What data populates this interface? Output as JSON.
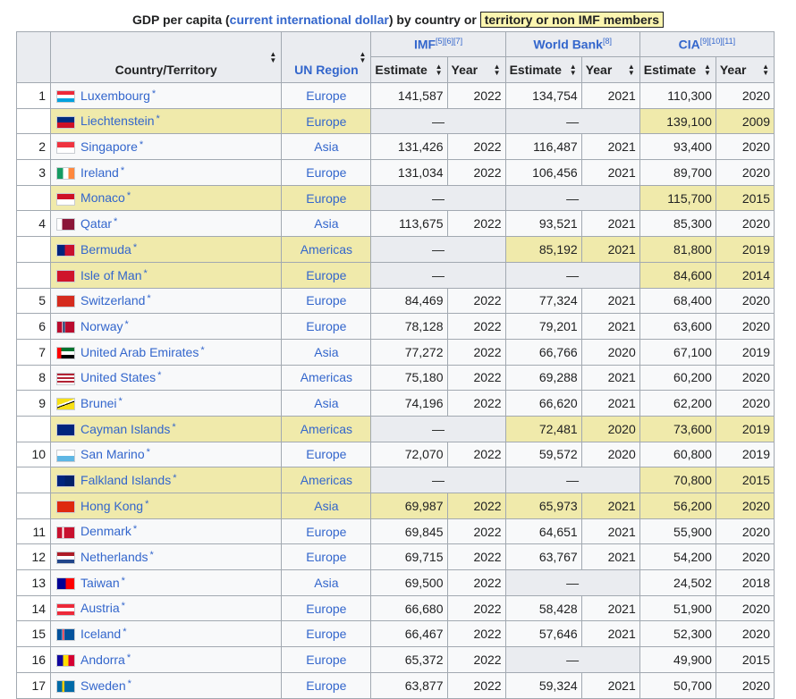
{
  "caption": {
    "prefix": "GDP per capita (",
    "link": "current international dollar",
    "middle": ") by country or ",
    "note": "territory or non IMF members"
  },
  "headers": {
    "country": "Country/Territory",
    "region": "UN Region",
    "imf": "IMF",
    "imf_refs": "[5][6][7]",
    "wb": "World Bank",
    "wb_refs": "[8]",
    "cia": "CIA",
    "cia_refs": "[9][10][11]",
    "estimate": "Estimate",
    "year": "Year"
  },
  "rows": [
    {
      "rank": "1",
      "name": "Luxembourg",
      "flag": "luxembourg-flag",
      "region": "Europe",
      "imf_est": "141,587",
      "imf_yr": "2022",
      "wb_est": "134,754",
      "wb_yr": "2021",
      "cia_est": "110,300",
      "cia_yr": "2020",
      "hl": false
    },
    {
      "rank": "",
      "name": "Liechtenstein",
      "flag": "liechtenstein-flag",
      "region": "Europe",
      "imf_est": "—",
      "imf_yr": "",
      "wb_est": "—",
      "wb_yr": "",
      "cia_est": "139,100",
      "cia_yr": "2009",
      "hl": true
    },
    {
      "rank": "2",
      "name": "Singapore",
      "flag": "singapore-flag",
      "region": "Asia",
      "imf_est": "131,426",
      "imf_yr": "2022",
      "wb_est": "116,487",
      "wb_yr": "2021",
      "cia_est": "93,400",
      "cia_yr": "2020",
      "hl": false
    },
    {
      "rank": "3",
      "name": "Ireland",
      "flag": "ireland-flag",
      "region": "Europe",
      "imf_est": "131,034",
      "imf_yr": "2022",
      "wb_est": "106,456",
      "wb_yr": "2021",
      "cia_est": "89,700",
      "cia_yr": "2020",
      "hl": false
    },
    {
      "rank": "",
      "name": "Monaco",
      "flag": "monaco-flag",
      "region": "Europe",
      "imf_est": "—",
      "imf_yr": "",
      "wb_est": "—",
      "wb_yr": "",
      "cia_est": "115,700",
      "cia_yr": "2015",
      "hl": true
    },
    {
      "rank": "4",
      "name": "Qatar",
      "flag": "qatar-flag",
      "region": "Asia",
      "imf_est": "113,675",
      "imf_yr": "2022",
      "wb_est": "93,521",
      "wb_yr": "2021",
      "cia_est": "85,300",
      "cia_yr": "2020",
      "hl": false
    },
    {
      "rank": "",
      "name": "Bermuda",
      "flag": "bermuda-flag",
      "region": "Americas",
      "imf_est": "—",
      "imf_yr": "",
      "wb_est": "85,192",
      "wb_yr": "2021",
      "cia_est": "81,800",
      "cia_yr": "2019",
      "hl": true
    },
    {
      "rank": "",
      "name": "Isle of Man",
      "flag": "isle-of-man-flag",
      "region": "Europe",
      "imf_est": "—",
      "imf_yr": "",
      "wb_est": "—",
      "wb_yr": "",
      "cia_est": "84,600",
      "cia_yr": "2014",
      "hl": true
    },
    {
      "rank": "5",
      "name": "Switzerland",
      "flag": "switzerland-flag",
      "region": "Europe",
      "imf_est": "84,469",
      "imf_yr": "2022",
      "wb_est": "77,324",
      "wb_yr": "2021",
      "cia_est": "68,400",
      "cia_yr": "2020",
      "hl": false
    },
    {
      "rank": "6",
      "name": "Norway",
      "flag": "norway-flag",
      "region": "Europe",
      "imf_est": "78,128",
      "imf_yr": "2022",
      "wb_est": "79,201",
      "wb_yr": "2021",
      "cia_est": "63,600",
      "cia_yr": "2020",
      "hl": false
    },
    {
      "rank": "7",
      "name": "United Arab Emirates",
      "flag": "uae-flag",
      "region": "Asia",
      "imf_est": "77,272",
      "imf_yr": "2022",
      "wb_est": "66,766",
      "wb_yr": "2020",
      "cia_est": "67,100",
      "cia_yr": "2019",
      "hl": false
    },
    {
      "rank": "8",
      "name": "United States",
      "flag": "usa-flag",
      "region": "Americas",
      "imf_est": "75,180",
      "imf_yr": "2022",
      "wb_est": "69,288",
      "wb_yr": "2021",
      "cia_est": "60,200",
      "cia_yr": "2020",
      "hl": false
    },
    {
      "rank": "9",
      "name": "Brunei",
      "flag": "brunei-flag",
      "region": "Asia",
      "imf_est": "74,196",
      "imf_yr": "2022",
      "wb_est": "66,620",
      "wb_yr": "2021",
      "cia_est": "62,200",
      "cia_yr": "2020",
      "hl": false
    },
    {
      "rank": "",
      "name": "Cayman Islands",
      "flag": "cayman-islands-flag",
      "region": "Americas",
      "imf_est": "—",
      "imf_yr": "",
      "wb_est": "72,481",
      "wb_yr": "2020",
      "cia_est": "73,600",
      "cia_yr": "2019",
      "hl": true
    },
    {
      "rank": "10",
      "name": "San Marino",
      "flag": "san-marino-flag",
      "region": "Europe",
      "imf_est": "72,070",
      "imf_yr": "2022",
      "wb_est": "59,572",
      "wb_yr": "2020",
      "cia_est": "60,800",
      "cia_yr": "2019",
      "hl": false
    },
    {
      "rank": "",
      "name": "Falkland Islands",
      "flag": "falkland-islands-flag",
      "region": "Americas",
      "imf_est": "—",
      "imf_yr": "",
      "wb_est": "—",
      "wb_yr": "",
      "cia_est": "70,800",
      "cia_yr": "2015",
      "hl": true
    },
    {
      "rank": "",
      "name": "Hong Kong",
      "flag": "hong-kong-flag",
      "region": "Asia",
      "imf_est": "69,987",
      "imf_yr": "2022",
      "wb_est": "65,973",
      "wb_yr": "2021",
      "cia_est": "56,200",
      "cia_yr": "2020",
      "hl": true
    },
    {
      "rank": "11",
      "name": "Denmark",
      "flag": "denmark-flag",
      "region": "Europe",
      "imf_est": "69,845",
      "imf_yr": "2022",
      "wb_est": "64,651",
      "wb_yr": "2021",
      "cia_est": "55,900",
      "cia_yr": "2020",
      "hl": false
    },
    {
      "rank": "12",
      "name": "Netherlands",
      "flag": "netherlands-flag",
      "region": "Europe",
      "imf_est": "69,715",
      "imf_yr": "2022",
      "wb_est": "63,767",
      "wb_yr": "2021",
      "cia_est": "54,200",
      "cia_yr": "2020",
      "hl": false
    },
    {
      "rank": "13",
      "name": "Taiwan",
      "flag": "taiwan-flag",
      "region": "Asia",
      "imf_est": "69,500",
      "imf_yr": "2022",
      "wb_est": "—",
      "wb_yr": "",
      "cia_est": "24,502",
      "cia_yr": "2018",
      "hl": false
    },
    {
      "rank": "14",
      "name": "Austria",
      "flag": "austria-flag",
      "region": "Europe",
      "imf_est": "66,680",
      "imf_yr": "2022",
      "wb_est": "58,428",
      "wb_yr": "2021",
      "cia_est": "51,900",
      "cia_yr": "2020",
      "hl": false
    },
    {
      "rank": "15",
      "name": "Iceland",
      "flag": "iceland-flag",
      "region": "Europe",
      "imf_est": "66,467",
      "imf_yr": "2022",
      "wb_est": "57,646",
      "wb_yr": "2021",
      "cia_est": "52,300",
      "cia_yr": "2020",
      "hl": false
    },
    {
      "rank": "16",
      "name": "Andorra",
      "flag": "andorra-flag",
      "region": "Europe",
      "imf_est": "65,372",
      "imf_yr": "2022",
      "wb_est": "—",
      "wb_yr": "",
      "cia_est": "49,900",
      "cia_yr": "2015",
      "hl": false
    },
    {
      "rank": "17",
      "name": "Sweden",
      "flag": "sweden-flag",
      "region": "Europe",
      "imf_est": "63,877",
      "imf_yr": "2022",
      "wb_est": "59,324",
      "wb_yr": "2021",
      "cia_est": "50,700",
      "cia_yr": "2020",
      "hl": false
    }
  ]
}
